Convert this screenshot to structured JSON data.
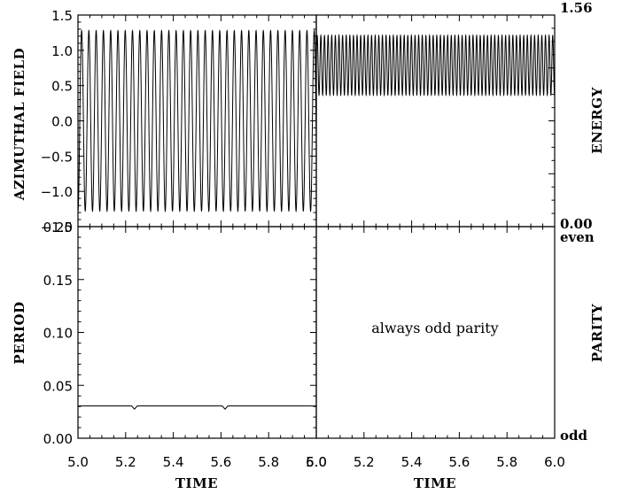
{
  "chart_data": [
    {
      "panel": "top-left",
      "type": "line",
      "ylabel": "AZIMUTHAL FIELD",
      "xlim": [
        5.0,
        6.0
      ],
      "ylim": [
        -1.5,
        1.5
      ],
      "yticks": [
        "1.5",
        "1.0",
        "0.5",
        "0.0",
        "−0.5",
        "−1.0",
        "−1.5"
      ],
      "series": [
        {
          "kind": "sinusoid",
          "amplitude": 1.28,
          "offset": 0.0,
          "period": 0.0305,
          "phase": -0.25,
          "x_range": [
            5.0,
            6.0
          ]
        }
      ]
    },
    {
      "panel": "top-right",
      "type": "line",
      "ylabel": "ENERGY",
      "xlim": [
        5.0,
        6.0
      ],
      "ylim": [
        0.0,
        1.56
      ],
      "yticks_right": [
        "1.56",
        "0.00"
      ],
      "series": [
        {
          "kind": "sinusoid",
          "min": 0.97,
          "max": 1.41,
          "period": 0.0152,
          "phase": 0.0,
          "x_range": [
            5.0,
            6.0
          ]
        }
      ]
    },
    {
      "panel": "bottom-left",
      "type": "line",
      "xlabel": "TIME",
      "ylabel": "PERIOD",
      "xlim": [
        5.0,
        6.0
      ],
      "ylim": [
        0.0,
        0.2
      ],
      "xticks": [
        "5.0",
        "5.2",
        "5.4",
        "5.6",
        "5.8",
        "6.0"
      ],
      "yticks": [
        "0.20",
        "0.15",
        "0.10",
        "0.05",
        "0.00"
      ],
      "series": [
        {
          "x": [
            5.0,
            5.225,
            5.237,
            5.249,
            5.605,
            5.617,
            5.629,
            6.0
          ],
          "y": [
            0.0305,
            0.0305,
            0.0275,
            0.0305,
            0.0305,
            0.0275,
            0.0305,
            0.0305
          ]
        }
      ]
    },
    {
      "panel": "bottom-right",
      "type": "line",
      "xlabel": "TIME",
      "ylabel": "PARITY",
      "xlim": [
        5.0,
        6.0
      ],
      "xticks": [
        "5.0",
        "5.2",
        "5.4",
        "5.6",
        "5.8",
        "6.0"
      ],
      "yticks_right": [
        "even",
        "odd"
      ],
      "annotation": "always odd parity",
      "series": []
    }
  ]
}
